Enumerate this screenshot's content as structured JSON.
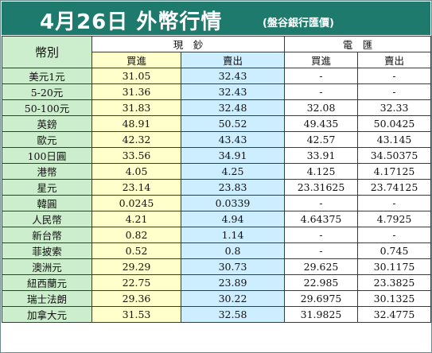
{
  "title": "4月26日 外幣行情",
  "subtitle": "(盤谷銀行匯價)",
  "headers": {
    "currency": "幣別",
    "cash": "現　鈔",
    "wire": "電　匯",
    "buy": "買進",
    "sell": "賣出"
  },
  "rows": [
    {
      "name": "美元1元",
      "cash_buy": "31.05",
      "cash_sell": "32.43",
      "wire_buy": "-",
      "wire_sell": "-"
    },
    {
      "name": "5-20元",
      "cash_buy": "31.36",
      "cash_sell": "32.43",
      "wire_buy": "-",
      "wire_sell": "-"
    },
    {
      "name": "50-100元",
      "cash_buy": "31.83",
      "cash_sell": "32.48",
      "wire_buy": "32.08",
      "wire_sell": "32.33"
    },
    {
      "name": "英鎊",
      "cash_buy": "48.91",
      "cash_sell": "50.52",
      "wire_buy": "49.435",
      "wire_sell": "50.0425"
    },
    {
      "name": "歐元",
      "cash_buy": "42.32",
      "cash_sell": "43.43",
      "wire_buy": "42.57",
      "wire_sell": "43.145"
    },
    {
      "name": "100日圓",
      "cash_buy": "33.56",
      "cash_sell": "34.91",
      "wire_buy": "33.91",
      "wire_sell": "34.50375"
    },
    {
      "name": "港幣",
      "cash_buy": "4.05",
      "cash_sell": "4.25",
      "wire_buy": "4.125",
      "wire_sell": "4.17125"
    },
    {
      "name": "星元",
      "cash_buy": "23.14",
      "cash_sell": "23.83",
      "wire_buy": "23.31625",
      "wire_sell": "23.74125"
    },
    {
      "name": "韓圓",
      "cash_buy": "0.0245",
      "cash_sell": "0.0339",
      "wire_buy": "-",
      "wire_sell": "-"
    },
    {
      "name": "人民幣",
      "cash_buy": "4.21",
      "cash_sell": "4.94",
      "wire_buy": "4.64375",
      "wire_sell": "4.7925"
    },
    {
      "name": "新台幣",
      "cash_buy": "0.82",
      "cash_sell": "1.14",
      "wire_buy": "-",
      "wire_sell": "-"
    },
    {
      "name": "菲披索",
      "cash_buy": "0.52",
      "cash_sell": "0.8",
      "wire_buy": "-",
      "wire_sell": "0.745"
    },
    {
      "name": "澳洲元",
      "cash_buy": "29.29",
      "cash_sell": "30.73",
      "wire_buy": "29.625",
      "wire_sell": "30.1175"
    },
    {
      "name": "紐西蘭元",
      "cash_buy": "22.75",
      "cash_sell": "23.89",
      "wire_buy": "22.985",
      "wire_sell": "23.3825"
    },
    {
      "name": "瑞士法朗",
      "cash_buy": "29.36",
      "cash_sell": "30.22",
      "wire_buy": "29.6975",
      "wire_sell": "30.1325"
    },
    {
      "name": "加拿大元",
      "cash_buy": "31.53",
      "cash_sell": "32.58",
      "wire_buy": "31.9825",
      "wire_sell": "32.4775"
    }
  ],
  "colors": {
    "title_bg": "#1f7a6e",
    "name_col": "#cceecc",
    "cash_buy_col": "#ffffcc",
    "cash_sell_col": "#cceeff",
    "wire_col": "#ffffff"
  }
}
